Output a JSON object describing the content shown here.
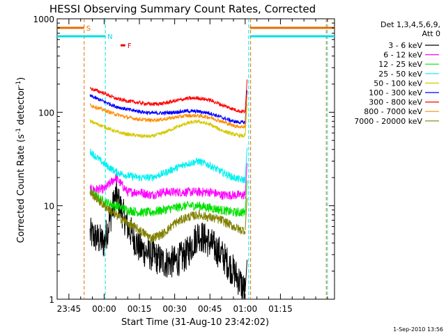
{
  "chart_data": {
    "type": "line",
    "title": "HESSI Observing Summary Count Rates, Corrected",
    "xlabel": "Start Time (31-Aug-10 23:42:02)",
    "ylabel": "Corrected Count Rate (s",
    "ylabel_sup1": "-1",
    "ylabel_mid": " detector",
    "ylabel_sup2": "-1",
    "ylabel_end": ")",
    "y_scale": "log",
    "ylim": [
      1,
      1000
    ],
    "xlim_minutes": [
      -20,
      98
    ],
    "x_ticks": [
      {
        "label": "23:45",
        "minute": -15
      },
      {
        "label": "00:00",
        "minute": 0
      },
      {
        "label": "00:15",
        "minute": 15
      },
      {
        "label": "00:30",
        "minute": 30
      },
      {
        "label": "00:45",
        "minute": 45
      },
      {
        "label": "01:00",
        "minute": 60
      },
      {
        "label": "01:15",
        "minute": 75
      }
    ],
    "y_ticks": [
      {
        "label": "1",
        "value": 1
      },
      {
        "label": "10",
        "value": 10
      },
      {
        "label": "100",
        "value": 100
      },
      {
        "label": "1000",
        "value": 1000
      }
    ],
    "legend_header": [
      "Det 1,3,4,5,6,9,",
      "Att 0"
    ],
    "timestamp": "1-Sep-2010 13:56",
    "flags": {
      "S": {
        "label": "S",
        "color": "#e07000",
        "start": -20,
        "end": -8.5,
        "level": 800
      },
      "N": {
        "label": "N",
        "color": "#00e0e0",
        "start": -20,
        "end": 0.5,
        "level": 650
      },
      "F": {
        "label": "F",
        "color": "#e00000",
        "start": 7,
        "end": 9,
        "level": 520
      },
      "S2": {
        "label": "",
        "color": "#e07000",
        "start": 62,
        "end": 98,
        "level": 800
      },
      "N2": {
        "label": "",
        "color": "#00e0e0",
        "start": 62,
        "end": 98,
        "level": 650
      }
    },
    "vlines": [
      {
        "minute": -8.5,
        "color": "#e07000"
      },
      {
        "minute": 0.5,
        "color": "#00e0e0"
      },
      {
        "minute": 61.5,
        "color": "#00e0e0"
      },
      {
        "minute": 62.3,
        "color": "#e07000"
      },
      {
        "minute": 94.5,
        "color": "#e07000"
      },
      {
        "minute": 95,
        "color": "#00e0e0"
      }
    ],
    "x": [
      -6,
      0,
      5,
      10,
      15,
      20,
      25,
      30,
      35,
      40,
      45,
      50,
      55,
      58,
      60
    ],
    "series": [
      {
        "name": "3 - 6 keV",
        "color": "#000000",
        "noise": 0.18,
        "values": [
          5,
          4,
          13,
          6,
          3.5,
          3,
          2.5,
          2.5,
          3,
          5,
          4,
          3,
          2,
          1.5,
          1.2
        ]
      },
      {
        "name": "6 - 12 keV",
        "color": "#ff00ff",
        "noise": 0.05,
        "values": [
          15,
          15,
          20,
          14,
          14,
          13,
          14,
          14,
          14,
          14,
          14,
          13,
          13,
          13,
          13
        ]
      },
      {
        "name": "12 - 25 keV",
        "color": "#00e000",
        "noise": 0.05,
        "values": [
          14,
          11,
          10,
          9,
          8.5,
          8.5,
          9,
          9.5,
          10,
          10,
          9.5,
          9,
          8.5,
          8.5,
          8.5
        ]
      },
      {
        "name": "25 - 50 keV",
        "color": "#00f0f0",
        "noise": 0.04,
        "values": [
          38,
          28,
          23,
          21,
          20,
          20,
          22,
          25,
          28,
          30,
          27,
          23,
          20,
          19,
          19
        ]
      },
      {
        "name": "50 - 100 keV",
        "color": "#d4c800",
        "noise": 0.02,
        "values": [
          80,
          70,
          62,
          58,
          56,
          55,
          60,
          68,
          76,
          80,
          74,
          64,
          58,
          56,
          56
        ]
      },
      {
        "name": "100 - 300 keV",
        "color": "#0000ff",
        "noise": 0.02,
        "values": [
          150,
          130,
          115,
          107,
          102,
          98,
          98,
          100,
          103,
          102,
          98,
          88,
          80,
          78,
          78
        ]
      },
      {
        "name": "300 - 800 keV",
        "color": "#ff0000",
        "noise": 0.02,
        "values": [
          180,
          160,
          140,
          132,
          126,
          122,
          124,
          132,
          140,
          142,
          135,
          120,
          108,
          102,
          102
        ]
      },
      {
        "name": "800 - 7000 keV",
        "color": "#ff8c00",
        "noise": 0.02,
        "values": [
          120,
          105,
          95,
          88,
          84,
          82,
          84,
          88,
          92,
          92,
          88,
          80,
          72,
          70,
          70
        ]
      },
      {
        "name": "7000 - 20000 keV",
        "color": "#808000",
        "noise": 0.05,
        "values": [
          14,
          10,
          8,
          6.5,
          5.5,
          4.5,
          5,
          6.5,
          7.5,
          8,
          7.5,
          7,
          6,
          5.5,
          5.5
        ]
      }
    ]
  }
}
